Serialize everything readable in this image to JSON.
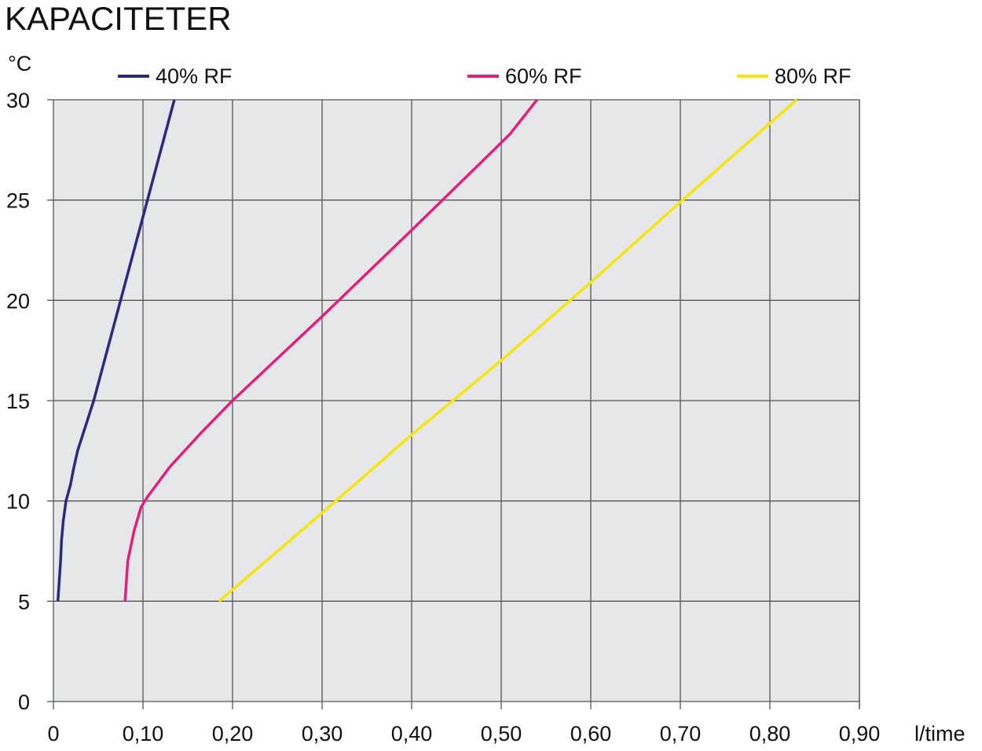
{
  "chart_data": {
    "type": "line",
    "title": "KAPACITETER",
    "xlabel": "l/time",
    "ylabel": "°C",
    "xlim": [
      0,
      0.9
    ],
    "ylim": [
      0,
      30
    ],
    "x_ticks": [
      "0",
      "0,10",
      "0,20",
      "0,30",
      "0,40",
      "0,50",
      "0,60",
      "0,70",
      "0,80",
      "0,90"
    ],
    "y_ticks": [
      "0",
      "5",
      "10",
      "15",
      "20",
      "25",
      "30"
    ],
    "grid": true,
    "legend_position": "top",
    "series": [
      {
        "name": "40% RF",
        "color": "#2b2a80",
        "points": [
          [
            0.005,
            5
          ],
          [
            0.008,
            7
          ],
          [
            0.009,
            8
          ],
          [
            0.011,
            9
          ],
          [
            0.014,
            10
          ],
          [
            0.019,
            10.8
          ],
          [
            0.022,
            11.5
          ],
          [
            0.027,
            12.5
          ],
          [
            0.045,
            15
          ],
          [
            0.075,
            20
          ],
          [
            0.105,
            25
          ],
          [
            0.135,
            30
          ]
        ]
      },
      {
        "name": "60% RF",
        "color": "#e0207a",
        "points": [
          [
            0.08,
            5
          ],
          [
            0.083,
            7
          ],
          [
            0.09,
            8.5
          ],
          [
            0.098,
            9.7
          ],
          [
            0.105,
            10.2
          ],
          [
            0.13,
            11.7
          ],
          [
            0.165,
            13.4
          ],
          [
            0.2,
            15
          ],
          [
            0.3,
            19.2
          ],
          [
            0.4,
            23.5
          ],
          [
            0.485,
            27.2
          ],
          [
            0.51,
            28.3
          ],
          [
            0.54,
            30
          ]
        ]
      },
      {
        "name": "80% RF",
        "color": "#f6e50f",
        "points": [
          [
            0.185,
            5
          ],
          [
            0.3,
            9.4
          ],
          [
            0.4,
            13.3
          ],
          [
            0.5,
            17
          ],
          [
            0.6,
            20.9
          ],
          [
            0.7,
            24.9
          ],
          [
            0.83,
            30
          ]
        ]
      }
    ]
  }
}
